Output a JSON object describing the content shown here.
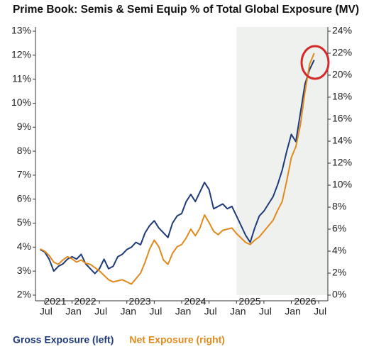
{
  "chart_data": {
    "type": "line",
    "title": "Prime Book: Semis & Semi Equip % of Total Global Exposure (MV)",
    "x": [
      "2021-06",
      "2021-07",
      "2021-08",
      "2021-09",
      "2021-10",
      "2021-11",
      "2021-12",
      "2022-01",
      "2022-02",
      "2022-03",
      "2022-04",
      "2022-05",
      "2022-06",
      "2022-07",
      "2022-08",
      "2022-09",
      "2022-10",
      "2022-11",
      "2022-12",
      "2023-01",
      "2023-02",
      "2023-03",
      "2023-04",
      "2023-05",
      "2023-06",
      "2023-07",
      "2023-08",
      "2023-09",
      "2023-10",
      "2023-11",
      "2023-12",
      "2024-01",
      "2024-02",
      "2024-03",
      "2024-04",
      "2024-05",
      "2024-06",
      "2024-07",
      "2024-08",
      "2024-09",
      "2024-10",
      "2024-11",
      "2024-12",
      "2025-01",
      "2025-02",
      "2025-03",
      "2025-04",
      "2025-05",
      "2025-06",
      "2025-07",
      "2025-08",
      "2025-09",
      "2025-10",
      "2025-11",
      "2025-12",
      "2026-01",
      "2026-02",
      "2026-03",
      "2026-04",
      "2026-05",
      "2026-06"
    ],
    "series": [
      {
        "name": "Gross Exposure (left)",
        "color": "#1f3a7a",
        "axis": "y",
        "values": [
          3.9,
          3.8,
          3.5,
          3.0,
          3.2,
          3.3,
          3.5,
          3.6,
          3.5,
          3.7,
          3.3,
          3.1,
          2.9,
          3.1,
          3.5,
          3.1,
          3.2,
          3.6,
          3.7,
          3.9,
          4.0,
          4.2,
          4.1,
          4.6,
          4.9,
          5.1,
          4.8,
          4.6,
          4.4,
          5.0,
          5.3,
          5.4,
          5.9,
          6.2,
          5.9,
          6.3,
          6.7,
          6.4,
          5.6,
          5.7,
          5.8,
          5.6,
          5.7,
          5.3,
          4.9,
          4.5,
          4.2,
          4.8,
          5.3,
          5.5,
          5.8,
          6.1,
          6.6,
          7.2,
          8.0,
          8.7,
          8.4,
          9.6,
          10.8,
          11.4,
          11.8
        ]
      },
      {
        "name": "Net Exposure (right)",
        "color": "#e08a1e",
        "axis": "y2",
        "values": [
          4.2,
          4.0,
          3.6,
          3.0,
          2.8,
          3.2,
          3.5,
          3.3,
          3.0,
          3.2,
          2.9,
          2.8,
          2.5,
          2.2,
          1.8,
          1.4,
          1.2,
          1.3,
          1.4,
          1.2,
          1.0,
          1.5,
          2.0,
          3.0,
          4.2,
          5.0,
          4.4,
          3.2,
          2.8,
          3.8,
          4.4,
          4.6,
          5.2,
          6.0,
          5.4,
          6.1,
          7.3,
          6.6,
          5.8,
          5.5,
          5.9,
          6.0,
          6.1,
          5.6,
          5.2,
          4.8,
          4.6,
          5.0,
          5.3,
          5.8,
          6.3,
          6.8,
          7.7,
          8.5,
          10.4,
          12.5,
          13.5,
          15.5,
          18.5,
          21.0,
          22.0
        ]
      }
    ],
    "xlim": [
      "2021-05",
      "2026-09"
    ],
    "xticks": [
      {
        "value": "2021-07",
        "label": "Jul"
      },
      {
        "value": "2022-01",
        "label": "Jan"
      },
      {
        "value": "2022-07",
        "label": "Jul"
      },
      {
        "value": "2023-01",
        "label": "Jan"
      },
      {
        "value": "2023-07",
        "label": "Jul"
      },
      {
        "value": "2024-01",
        "label": "Jan"
      },
      {
        "value": "2024-07",
        "label": "Jul"
      },
      {
        "value": "2025-01",
        "label": "Jan"
      },
      {
        "value": "2025-07",
        "label": "Jul"
      },
      {
        "value": "2026-01",
        "label": "Jan"
      },
      {
        "value": "2026-07",
        "label": "Jul"
      }
    ],
    "year_labels": [
      "2021",
      "2022",
      "2023",
      "2024",
      "2025",
      "2026"
    ],
    "ylim": [
      2,
      13
    ],
    "yticks": [
      {
        "value": 2,
        "label": "2%"
      },
      {
        "value": 3,
        "label": "3%"
      },
      {
        "value": 4,
        "label": "4%"
      },
      {
        "value": 5,
        "label": "5%"
      },
      {
        "value": 6,
        "label": "6%"
      },
      {
        "value": 7,
        "label": "7%"
      },
      {
        "value": 8,
        "label": "8%"
      },
      {
        "value": 9,
        "label": "9%"
      },
      {
        "value": 10,
        "label": "10%"
      },
      {
        "value": 11,
        "label": "11%"
      },
      {
        "value": 12,
        "label": "12%"
      },
      {
        "value": 13,
        "label": "13%"
      }
    ],
    "y2lim": [
      0,
      24
    ],
    "y2ticks": [
      {
        "value": 0,
        "label": "0%"
      },
      {
        "value": 2,
        "label": "2%"
      },
      {
        "value": 4,
        "label": "4%"
      },
      {
        "value": 6,
        "label": "6%"
      },
      {
        "value": 8,
        "label": "8%"
      },
      {
        "value": 10,
        "label": "10%"
      },
      {
        "value": 12,
        "label": "12%"
      },
      {
        "value": 14,
        "label": "14%"
      },
      {
        "value": 16,
        "label": "16%"
      },
      {
        "value": 18,
        "label": "18%"
      },
      {
        "value": 20,
        "label": "20%"
      },
      {
        "value": 22,
        "label": "22%"
      },
      {
        "value": 24,
        "label": "24%"
      }
    ],
    "shade_from": "2025-01",
    "grid": false
  }
}
